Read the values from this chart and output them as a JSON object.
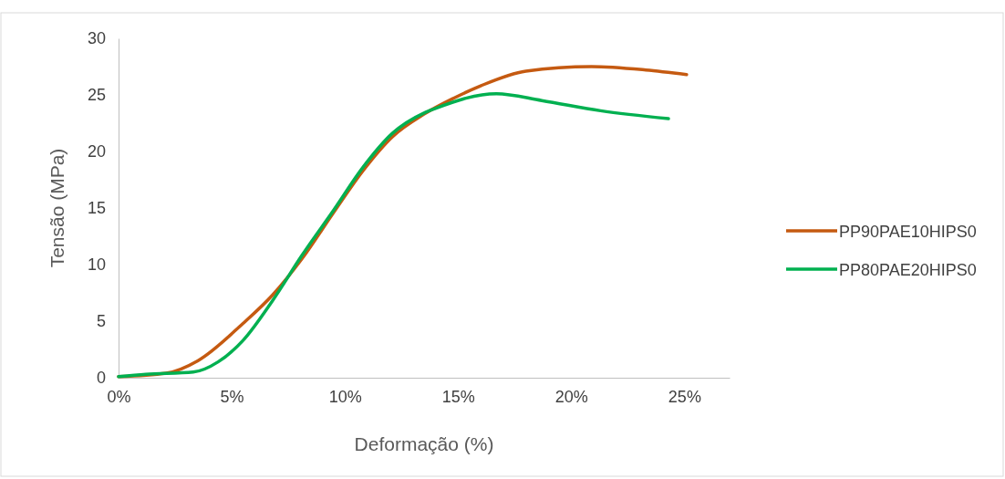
{
  "chart_data": {
    "type": "line",
    "xlabel": "Deformação (%)",
    "ylabel": "Tensão (MPa)",
    "xlim": [
      0,
      27
    ],
    "xticks": [
      {
        "value": 0,
        "label": "0%"
      },
      {
        "value": 5,
        "label": "5%"
      },
      {
        "value": 10,
        "label": "10%"
      },
      {
        "value": 15,
        "label": "15%"
      },
      {
        "value": 20,
        "label": "20%"
      },
      {
        "value": 25,
        "label": "25%"
      }
    ],
    "ylim": [
      0,
      30
    ],
    "yticks": [
      0,
      5,
      10,
      15,
      20,
      25,
      30
    ],
    "grid": false,
    "legend": "right",
    "marker": "none",
    "line_style": "solid",
    "series": [
      {
        "name": "PP90PAE10HIPS0",
        "color": "#c55a11",
        "x": [
          0,
          2.1,
          3.5,
          5.5,
          6.8,
          8.1,
          9.5,
          10.8,
          12.1,
          13.5,
          14.8,
          16,
          18,
          20.9,
          23.3,
          25.1
        ],
        "values": [
          0.1,
          0.4,
          1.5,
          4.8,
          7.3,
          10.5,
          14.6,
          18.3,
          21.3,
          23.3,
          24.7,
          25.8,
          27.1,
          27.5,
          27.2,
          26.8
        ]
      },
      {
        "name": "PP80PAE20HIPS0",
        "color": "#00b050",
        "x": [
          0,
          1.2,
          3.3,
          4.4,
          5.5,
          6.8,
          8.1,
          9.5,
          10.8,
          12.1,
          13.5,
          14,
          16.7,
          18.7,
          21.3,
          24.3
        ],
        "values": [
          0.1,
          0.3,
          0.5,
          1.4,
          3.3,
          6.8,
          10.8,
          14.8,
          18.6,
          21.6,
          23.4,
          23.8,
          25.1,
          24.5,
          23.6,
          22.9
        ]
      }
    ]
  }
}
